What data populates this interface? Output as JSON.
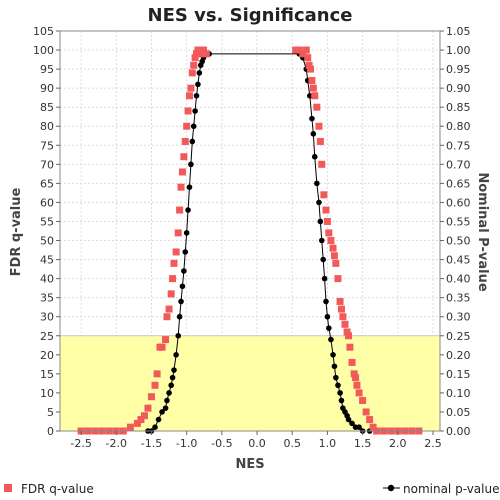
{
  "chart_data": {
    "type": "scatter",
    "title": "NES vs. Significance",
    "xlabel": "NES",
    "ylabel": "FDR q-value",
    "y2label": "Nominal P-value",
    "xlim": [
      -2.8,
      2.6
    ],
    "ylim": [
      0,
      105
    ],
    "y2lim": [
      0,
      1.05
    ],
    "x_ticks": [
      "-2.5",
      "-2.0",
      "-1.5",
      "-1.0",
      "-0.5",
      "0.0",
      "0.5",
      "1.0",
      "1.5",
      "2.0",
      "2.5"
    ],
    "y_ticks": [
      "0",
      "5",
      "10",
      "15",
      "20",
      "25",
      "30",
      "35",
      "40",
      "45",
      "50",
      "55",
      "60",
      "65",
      "70",
      "75",
      "80",
      "85",
      "90",
      "95",
      "100",
      "105"
    ],
    "y2_ticks": [
      "0.00",
      "0.05",
      "0.10",
      "0.15",
      "0.20",
      "0.25",
      "0.30",
      "0.35",
      "0.40",
      "0.45",
      "0.50",
      "0.55",
      "0.60",
      "0.65",
      "0.70",
      "0.75",
      "0.80",
      "0.85",
      "0.90",
      "0.95",
      "1.00",
      "1.05"
    ],
    "highlight_band": {
      "y_from": 0,
      "y_to": 25,
      "color": "#ffffa8"
    },
    "grid": true,
    "legend_placement": "bottom",
    "series": [
      {
        "name": "FDR q-value",
        "axis": "left",
        "marker": "square",
        "color": "#f25a5a",
        "points": [
          [
            -2.5,
            0
          ],
          [
            -2.4,
            0
          ],
          [
            -2.3,
            0
          ],
          [
            -2.2,
            0
          ],
          [
            -2.1,
            0
          ],
          [
            -2.0,
            0
          ],
          [
            -1.9,
            0
          ],
          [
            -1.8,
            1
          ],
          [
            -1.7,
            2
          ],
          [
            -1.65,
            3
          ],
          [
            -1.6,
            4
          ],
          [
            -1.55,
            6
          ],
          [
            -1.5,
            9
          ],
          [
            -1.45,
            12
          ],
          [
            -1.42,
            15
          ],
          [
            -1.38,
            22
          ],
          [
            -1.35,
            22
          ],
          [
            -1.3,
            24
          ],
          [
            -1.28,
            30
          ],
          [
            -1.25,
            32
          ],
          [
            -1.22,
            36
          ],
          [
            -1.2,
            40
          ],
          [
            -1.18,
            44
          ],
          [
            -1.15,
            47
          ],
          [
            -1.12,
            52
          ],
          [
            -1.1,
            58
          ],
          [
            -1.08,
            64
          ],
          [
            -1.06,
            68
          ],
          [
            -1.04,
            72
          ],
          [
            -1.02,
            76
          ],
          [
            -1.0,
            80
          ],
          [
            -0.98,
            84
          ],
          [
            -0.96,
            88
          ],
          [
            -0.94,
            90
          ],
          [
            -0.92,
            94
          ],
          [
            -0.9,
            96
          ],
          [
            -0.88,
            98
          ],
          [
            -0.86,
            99
          ],
          [
            -0.84,
            100
          ],
          [
            -0.82,
            100
          ],
          [
            -0.8,
            99
          ],
          [
            -0.78,
            100
          ],
          [
            -0.76,
            100
          ],
          [
            -0.72,
            99
          ],
          [
            0.55,
            100
          ],
          [
            0.6,
            100
          ],
          [
            0.65,
            99
          ],
          [
            0.7,
            100
          ],
          [
            0.72,
            98
          ],
          [
            0.74,
            96
          ],
          [
            0.76,
            95
          ],
          [
            0.78,
            92
          ],
          [
            0.8,
            90
          ],
          [
            0.82,
            88
          ],
          [
            0.85,
            85
          ],
          [
            0.88,
            80
          ],
          [
            0.9,
            76
          ],
          [
            0.92,
            70
          ],
          [
            0.95,
            62
          ],
          [
            0.98,
            58
          ],
          [
            1.0,
            55
          ],
          [
            1.02,
            52
          ],
          [
            1.05,
            50
          ],
          [
            1.08,
            48
          ],
          [
            1.1,
            46
          ],
          [
            1.12,
            44
          ],
          [
            1.15,
            40
          ],
          [
            1.18,
            34
          ],
          [
            1.2,
            32
          ],
          [
            1.22,
            30
          ],
          [
            1.25,
            28
          ],
          [
            1.28,
            26
          ],
          [
            1.3,
            25
          ],
          [
            1.32,
            22
          ],
          [
            1.35,
            18
          ],
          [
            1.38,
            15
          ],
          [
            1.4,
            14
          ],
          [
            1.42,
            12
          ],
          [
            1.45,
            10
          ],
          [
            1.5,
            8
          ],
          [
            1.55,
            5
          ],
          [
            1.6,
            3
          ],
          [
            1.65,
            1
          ],
          [
            1.7,
            0
          ],
          [
            1.8,
            0
          ],
          [
            1.9,
            0
          ],
          [
            2.0,
            0
          ],
          [
            2.1,
            0
          ],
          [
            2.2,
            0
          ],
          [
            2.3,
            0
          ]
        ]
      },
      {
        "name": "nominal p-value",
        "axis": "right",
        "marker": "circle-line",
        "color": "#000000",
        "points": [
          [
            -1.55,
            0.0
          ],
          [
            -1.5,
            0.0
          ],
          [
            -1.45,
            0.01
          ],
          [
            -1.4,
            0.03
          ],
          [
            -1.35,
            0.05
          ],
          [
            -1.3,
            0.06
          ],
          [
            -1.28,
            0.08
          ],
          [
            -1.25,
            0.1
          ],
          [
            -1.22,
            0.12
          ],
          [
            -1.2,
            0.14
          ],
          [
            -1.18,
            0.16
          ],
          [
            -1.15,
            0.2
          ],
          [
            -1.12,
            0.25
          ],
          [
            -1.1,
            0.3
          ],
          [
            -1.08,
            0.34
          ],
          [
            -1.06,
            0.38
          ],
          [
            -1.04,
            0.42
          ],
          [
            -1.02,
            0.47
          ],
          [
            -1.0,
            0.52
          ],
          [
            -0.98,
            0.58
          ],
          [
            -0.96,
            0.64
          ],
          [
            -0.94,
            0.7
          ],
          [
            -0.92,
            0.76
          ],
          [
            -0.9,
            0.8
          ],
          [
            -0.88,
            0.84
          ],
          [
            -0.86,
            0.88
          ],
          [
            -0.84,
            0.91
          ],
          [
            -0.82,
            0.94
          ],
          [
            -0.8,
            0.96
          ],
          [
            -0.78,
            0.97
          ],
          [
            -0.76,
            0.98
          ],
          [
            -0.72,
            0.99
          ],
          [
            -0.68,
            0.99
          ],
          [
            0.6,
            0.99
          ],
          [
            0.65,
            0.98
          ],
          [
            0.7,
            0.95
          ],
          [
            0.72,
            0.92
          ],
          [
            0.75,
            0.88
          ],
          [
            0.78,
            0.82
          ],
          [
            0.8,
            0.78
          ],
          [
            0.82,
            0.72
          ],
          [
            0.85,
            0.65
          ],
          [
            0.88,
            0.6
          ],
          [
            0.9,
            0.55
          ],
          [
            0.92,
            0.5
          ],
          [
            0.94,
            0.45
          ],
          [
            0.96,
            0.4
          ],
          [
            0.98,
            0.34
          ],
          [
            1.0,
            0.3
          ],
          [
            1.02,
            0.27
          ],
          [
            1.05,
            0.24
          ],
          [
            1.08,
            0.2
          ],
          [
            1.1,
            0.17
          ],
          [
            1.12,
            0.14
          ],
          [
            1.15,
            0.12
          ],
          [
            1.18,
            0.1
          ],
          [
            1.2,
            0.08
          ],
          [
            1.22,
            0.06
          ],
          [
            1.25,
            0.05
          ],
          [
            1.28,
            0.04
          ],
          [
            1.3,
            0.03
          ],
          [
            1.35,
            0.02
          ],
          [
            1.4,
            0.01
          ],
          [
            1.45,
            0.01
          ],
          [
            1.5,
            0.0
          ],
          [
            1.6,
            0.0
          ],
          [
            1.7,
            0.0
          ],
          [
            1.8,
            0.0
          ]
        ]
      }
    ]
  }
}
